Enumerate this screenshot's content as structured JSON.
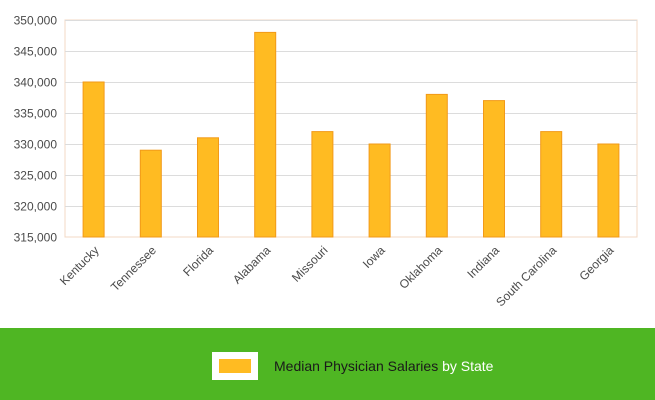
{
  "chart_data": {
    "type": "bar",
    "categories": [
      "Kentucky",
      "Tennessee",
      "Florida",
      "Alabama",
      "Missouri",
      "Iowa",
      "Oklahoma",
      "Indiana",
      "South Carolina",
      "Georgia"
    ],
    "series": [
      {
        "name": "Median Physician Salaries",
        "values": [
          340000,
          329000,
          331000,
          348000,
          332000,
          330000,
          338000,
          337000,
          332000,
          330000
        ]
      }
    ],
    "yticks": [
      "315,000",
      "320,000",
      "325,000",
      "330,000",
      "335,000",
      "340,000",
      "345,000",
      "350,000"
    ],
    "ylim": [
      315000,
      350000
    ],
    "grid": true,
    "legend_position": "bottom",
    "bar_color": "#ffbb22",
    "bar_stroke": "#f29a18"
  },
  "legend": {
    "series_label": "Median Physician Salaries",
    "suffix": " by State"
  },
  "colors": {
    "legend_band": "#4fb623",
    "gridline": "#dcdcdc",
    "axis_frame": "#f3d8c4"
  }
}
